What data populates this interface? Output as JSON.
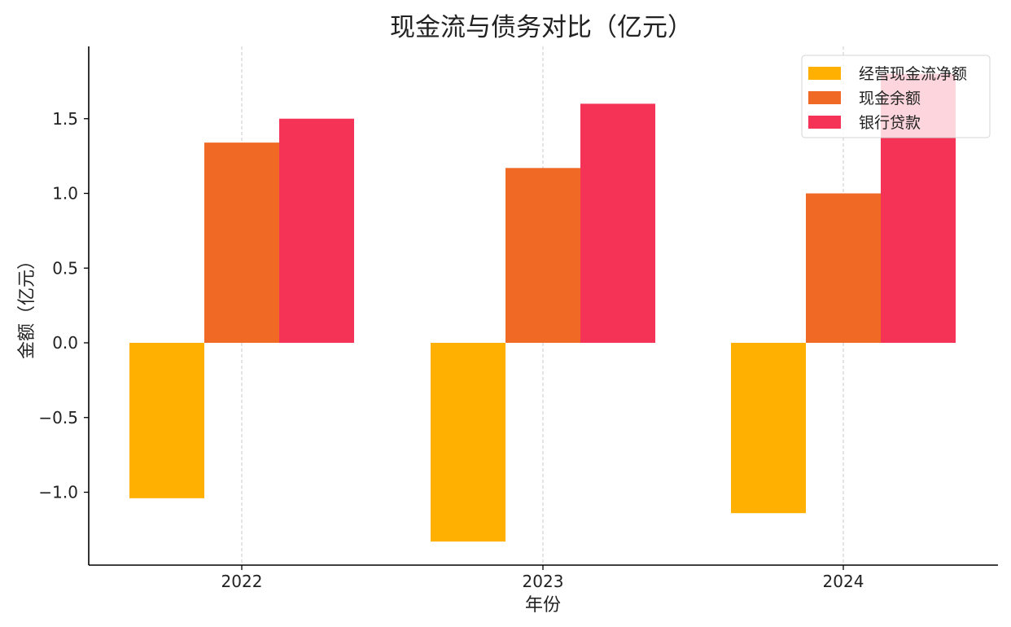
{
  "chart_data": {
    "type": "bar",
    "title": "现金流与债务对比（亿元）",
    "xlabel": "年份",
    "ylabel": "金额（亿元）",
    "categories": [
      "2022",
      "2023",
      "2024"
    ],
    "series": [
      {
        "name": "经营现金流净额",
        "color": "#FFB000",
        "values": [
          -1.04,
          -1.33,
          -1.14
        ]
      },
      {
        "name": "现金余额",
        "color": "#F06A25",
        "values": [
          1.34,
          1.17,
          1.0
        ]
      },
      {
        "name": "银行贷款",
        "color": "#F43356",
        "values": [
          1.5,
          1.6,
          1.8
        ]
      }
    ],
    "ylim": [
      -1.49,
      2.0
    ],
    "yticks": [
      -1.0,
      -0.5,
      0.0,
      0.5,
      1.0,
      1.5
    ],
    "ytick_labels": [
      "−1.0",
      "−0.5",
      "0.0",
      "0.5",
      "1.0",
      "1.5"
    ],
    "grid": "vertical dashed at categories",
    "legend_position": "top-right"
  }
}
